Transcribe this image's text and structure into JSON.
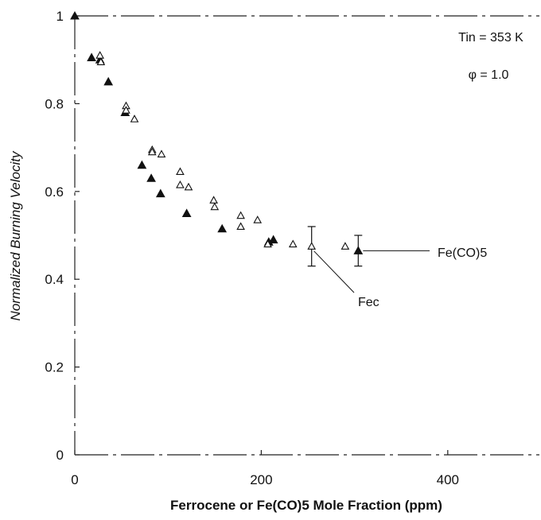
{
  "chart_data": {
    "type": "scatter",
    "title": "",
    "xlabel": "Ferrocene or Fe(CO)5 Mole Fraction (ppm)",
    "ylabel": "Normalized Burning Velocity",
    "xlim": [
      0,
      500
    ],
    "ylim": [
      0,
      1
    ],
    "xticks": [
      0,
      200,
      400
    ],
    "xtick_labels": [
      "0",
      "200",
      "400"
    ],
    "yticks": [
      0,
      0.2,
      0.4,
      0.6,
      0.8,
      1
    ],
    "ytick_labels": [
      "0",
      "0.2",
      "0.4",
      "0.6",
      "0.8",
      "1"
    ],
    "grid": false,
    "conditions": [
      "Tin = 353 K",
      "φ = 1.0"
    ],
    "series": [
      {
        "name": "Fe(CO)5",
        "marker": "filled-triangle",
        "color": "#111111",
        "x": [
          0,
          18,
          27,
          36,
          54,
          72,
          82,
          92,
          120,
          158,
          208,
          213,
          304
        ],
        "y": [
          1.0,
          0.905,
          0.9,
          0.85,
          0.78,
          0.66,
          0.63,
          0.595,
          0.55,
          0.515,
          0.485,
          0.49,
          0.465
        ],
        "error": [
          null,
          null,
          null,
          null,
          null,
          null,
          null,
          null,
          null,
          null,
          null,
          null,
          0.035
        ]
      },
      {
        "name": "Fec",
        "marker": "open-triangle",
        "color": "#111111",
        "x": [
          27,
          28,
          55,
          55,
          64,
          83,
          83,
          93,
          113,
          113,
          122,
          149,
          150,
          178,
          178,
          196,
          207,
          234,
          254,
          290
        ],
        "y": [
          0.91,
          0.895,
          0.795,
          0.785,
          0.765,
          0.695,
          0.69,
          0.685,
          0.645,
          0.615,
          0.61,
          0.58,
          0.565,
          0.545,
          0.52,
          0.535,
          0.48,
          0.48,
          0.475,
          0.475
        ],
        "error": [
          null,
          null,
          null,
          null,
          null,
          null,
          null,
          null,
          null,
          null,
          null,
          null,
          null,
          null,
          null,
          null,
          null,
          null,
          0.045,
          null
        ]
      }
    ],
    "annotations": [
      {
        "text": "Fe(CO)5",
        "series": "Fe(CO)5"
      },
      {
        "text": "Fec",
        "series": "Fec"
      }
    ]
  }
}
